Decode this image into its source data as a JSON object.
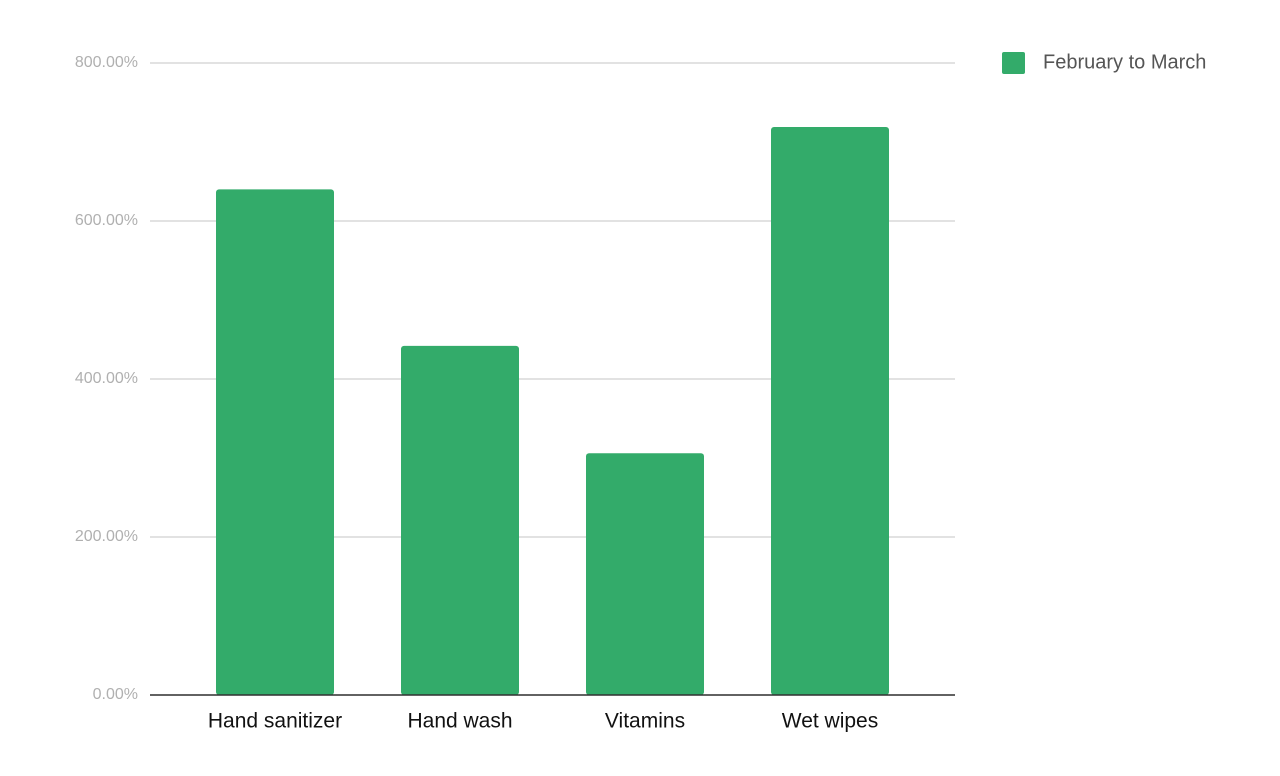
{
  "chart_data": {
    "type": "bar",
    "categories": [
      "Hand sanitizer",
      "Hand wash",
      "Vitamins",
      "Wet wipes"
    ],
    "series": [
      {
        "name": "February to March",
        "color": "#33ab6a",
        "values": [
          640,
          442,
          306,
          719
        ]
      }
    ],
    "ylim": [
      0,
      800
    ],
    "yticks": [
      {
        "value": 0,
        "label": "0.00%"
      },
      {
        "value": 200,
        "label": "200.00%"
      },
      {
        "value": 400,
        "label": "400.00%"
      },
      {
        "value": 600,
        "label": "600.00%"
      },
      {
        "value": 800,
        "label": "800.00%"
      }
    ],
    "grid": true,
    "legend": "right"
  }
}
